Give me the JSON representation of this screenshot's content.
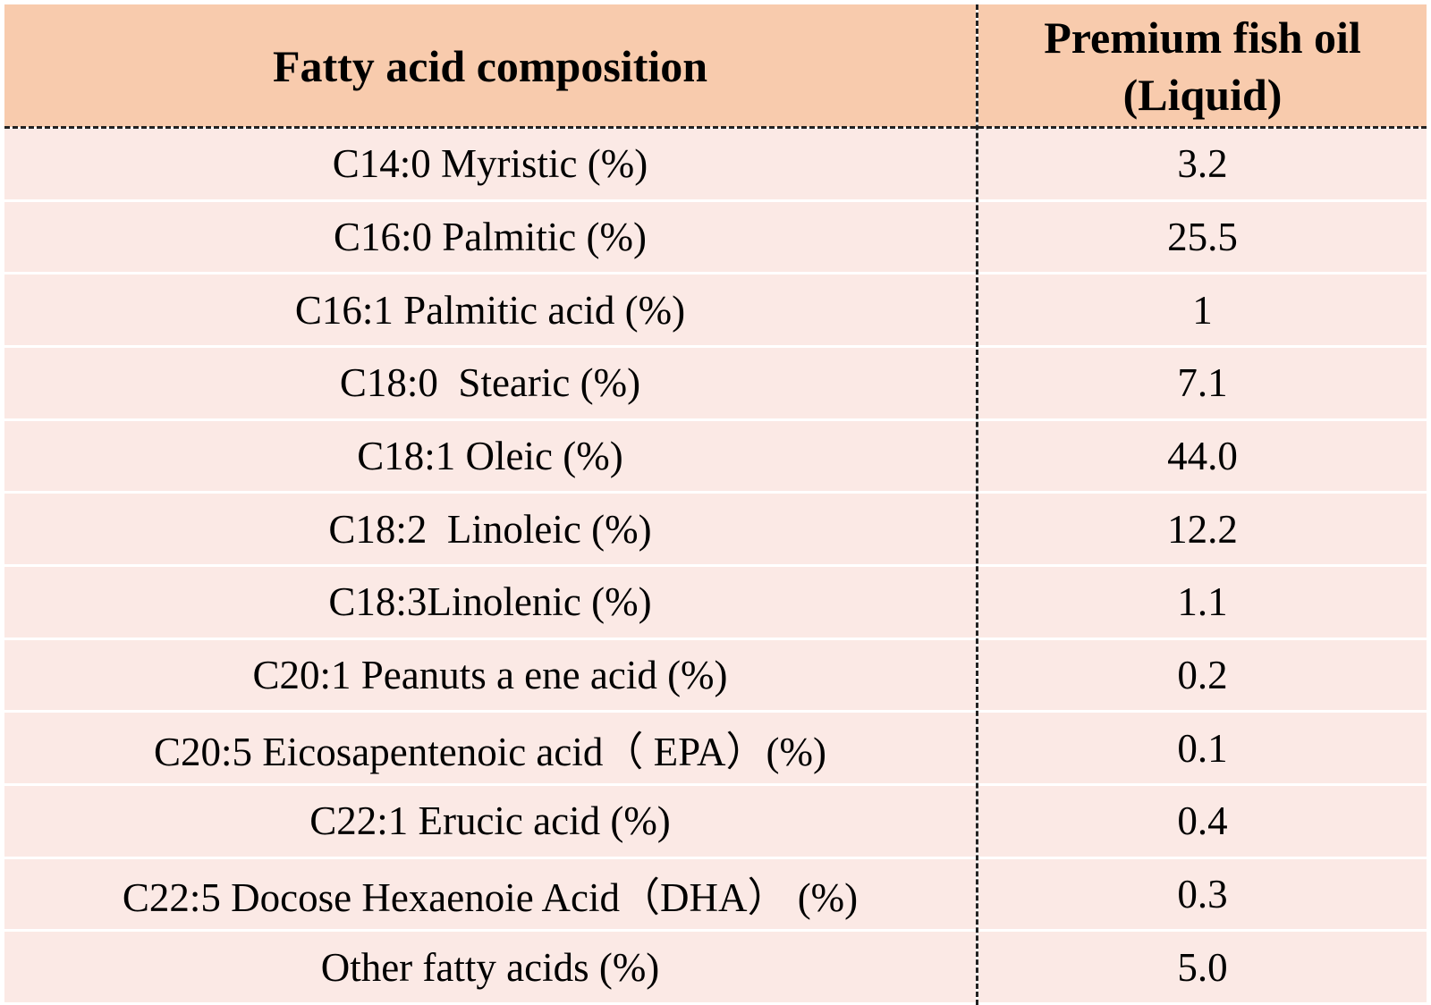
{
  "table": {
    "header": [
      "Fatty acid composition",
      [
        "Premium fish oil",
        "(Liquid)"
      ]
    ],
    "rows": [
      [
        "C14:0 Myristic (%)",
        "3.2"
      ],
      [
        "C16:0 Palmitic (%)",
        "25.5"
      ],
      [
        "C16:1 Palmitic acid (%)",
        "1"
      ],
      [
        "C18:0  Stearic (%)",
        "7.1"
      ],
      [
        "C18:1 Oleic (%)",
        "44.0"
      ],
      [
        "C18:2  Linoleic (%)",
        "12.2"
      ],
      [
        "C18:3Linolenic (%)",
        "1.1"
      ],
      [
        "C20:1 Peanuts a ene acid (%)",
        "0.2"
      ],
      [
        "C20:5 Eicosapentenoic acid（ EPA）(%)",
        "0.1"
      ],
      [
        "C22:1 Erucic acid (%)",
        "0.4"
      ],
      [
        "C22:5 Docose Hexaenoie Acid（DHA） (%)",
        "0.3"
      ],
      [
        "Other fatty acids (%)",
        "5.0"
      ]
    ]
  }
}
